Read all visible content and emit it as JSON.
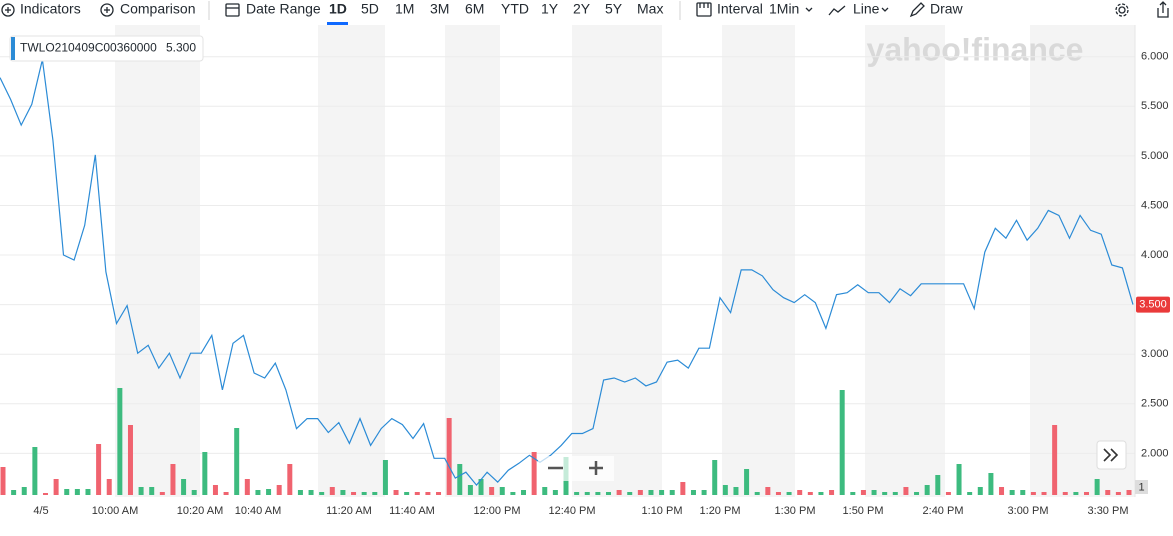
{
  "toolbar": {
    "indicators": "Indicators",
    "comparison": "Comparison",
    "date_range": "Date Range",
    "ranges": [
      "1D",
      "5D",
      "1M",
      "3M",
      "6M",
      "YTD",
      "1Y",
      "2Y",
      "5Y",
      "Max"
    ],
    "active_range": 0,
    "interval_label": "Interval",
    "interval": "1Min",
    "chart_style": "Line",
    "draw": "Draw"
  },
  "chart_data": {
    "type": "line",
    "watermark": "yahoo!finance",
    "tooltip": {
      "symbol": "TWLO210409C00360000",
      "value": {
        "value": 5.3,
        "label": "5.300"
      }
    },
    "last_price": {
      "value": 3.5,
      "label": "3.500"
    },
    "badge": "1",
    "x_labels": [
      "4/5",
      "10:00 AM",
      "10:20 AM",
      "10:40 AM",
      "11:20 AM",
      "11:40 AM",
      "12:00 PM",
      "12:40 PM",
      "1:10 PM",
      "1:20 PM",
      "1:30 PM",
      "1:50 PM",
      "2:40 PM",
      "3:00 PM",
      "3:30 PM"
    ],
    "ylim": [
      1.58,
      6.32
    ],
    "yticks": [
      {
        "value": 2,
        "label": "2.000"
      },
      {
        "value": 2.5,
        "label": "2.500"
      },
      {
        "value": 3,
        "label": "3.000"
      },
      {
        "value": 3.5,
        "label": "3.500"
      },
      {
        "value": 4,
        "label": "4.000"
      },
      {
        "value": 4.5,
        "label": "4.500"
      },
      {
        "value": 5,
        "label": "5.000"
      },
      {
        "value": 5.5,
        "label": "5.500"
      },
      {
        "value": 6,
        "label": "6.000"
      }
    ],
    "grid": true,
    "series": [
      {
        "color": "#2b8bd6",
        "values": [
          5.79,
          5.57,
          5.31,
          5.52,
          5.97,
          5.16,
          4.0,
          3.95,
          4.3,
          5.01,
          3.83,
          3.31,
          3.49,
          3.01,
          3.09,
          2.86,
          3.01,
          2.76,
          3.01,
          3.01,
          3.19,
          2.64,
          3.11,
          3.19,
          2.81,
          2.76,
          2.91,
          2.64,
          2.25,
          2.35,
          2.35,
          2.21,
          2.31,
          2.1,
          2.35,
          2.08,
          2.25,
          2.35,
          2.29,
          2.15,
          2.3,
          1.95,
          1.95,
          1.75,
          1.81,
          1.68,
          1.81,
          1.71,
          1.83,
          1.9,
          1.98,
          1.91,
          1.98,
          2.08,
          2.2,
          2.2,
          2.25,
          2.74,
          2.76,
          2.72,
          2.76,
          2.68,
          2.72,
          2.92,
          2.94,
          2.86,
          3.06,
          3.06,
          3.57,
          3.42,
          3.85,
          3.85,
          3.79,
          3.65,
          3.57,
          3.52,
          3.6,
          3.52,
          3.26,
          3.6,
          3.62,
          3.7,
          3.62,
          3.62,
          3.52,
          3.66,
          3.59,
          3.71,
          3.71,
          3.71,
          3.71,
          3.71,
          3.46,
          4.03,
          4.27,
          4.17,
          4.35,
          4.15,
          4.27,
          4.45,
          4.4,
          4.17,
          4.4,
          4.25,
          4.21,
          3.9,
          3.87,
          3.5
        ]
      }
    ],
    "volume": {
      "up_color": "#3dbb7f",
      "down_color": "#f0636f",
      "values": [
        28,
        5,
        8,
        48,
        2,
        16,
        6,
        6,
        6,
        51,
        16,
        107,
        70,
        8,
        8,
        3,
        31,
        16,
        5,
        43,
        10,
        3,
        67,
        16,
        5,
        6,
        10,
        31,
        5,
        5,
        3,
        8,
        5,
        3,
        3,
        3,
        35,
        5,
        3,
        3,
        3,
        3,
        77,
        31,
        10,
        16,
        8,
        8,
        3,
        5,
        43,
        8,
        5,
        38,
        3,
        3,
        3,
        3,
        5,
        3,
        5,
        5,
        5,
        5,
        13,
        5,
        5,
        35,
        10,
        8,
        26,
        3,
        8,
        3,
        3,
        5,
        3,
        3,
        5,
        105,
        3,
        5,
        5,
        3,
        3,
        8,
        3,
        10,
        20,
        3,
        31,
        3,
        8,
        22,
        8,
        5,
        5,
        3,
        3,
        70,
        3,
        3,
        3,
        16,
        5,
        3,
        5
      ],
      "directions": [
        "down",
        "up",
        "up",
        "up",
        "down",
        "down",
        "up",
        "up",
        "up",
        "down",
        "down",
        "up",
        "down",
        "up",
        "up",
        "down",
        "down",
        "up",
        "up",
        "up",
        "down",
        "down",
        "up",
        "down",
        "up",
        "up",
        "down",
        "down",
        "up",
        "up",
        "up",
        "down",
        "up",
        "down",
        "up",
        "up",
        "up",
        "down",
        "up",
        "down",
        "down",
        "down",
        "down",
        "up",
        "up",
        "up",
        "down",
        "up",
        "up",
        "up",
        "down",
        "up",
        "up",
        "up",
        "up",
        "up",
        "up",
        "up",
        "down",
        "up",
        "down",
        "up",
        "up",
        "up",
        "down",
        "up",
        "up",
        "up",
        "up",
        "up",
        "up",
        "up",
        "down",
        "down",
        "up",
        "down",
        "down",
        "up",
        "down",
        "up",
        "up",
        "down",
        "up",
        "up",
        "up",
        "down",
        "up",
        "up",
        "up",
        "down",
        "up",
        "up",
        "up",
        "up",
        "down",
        "up",
        "up",
        "down",
        "down",
        "down",
        "down",
        "up",
        "down",
        "up",
        "down",
        "down",
        "down"
      ]
    }
  }
}
